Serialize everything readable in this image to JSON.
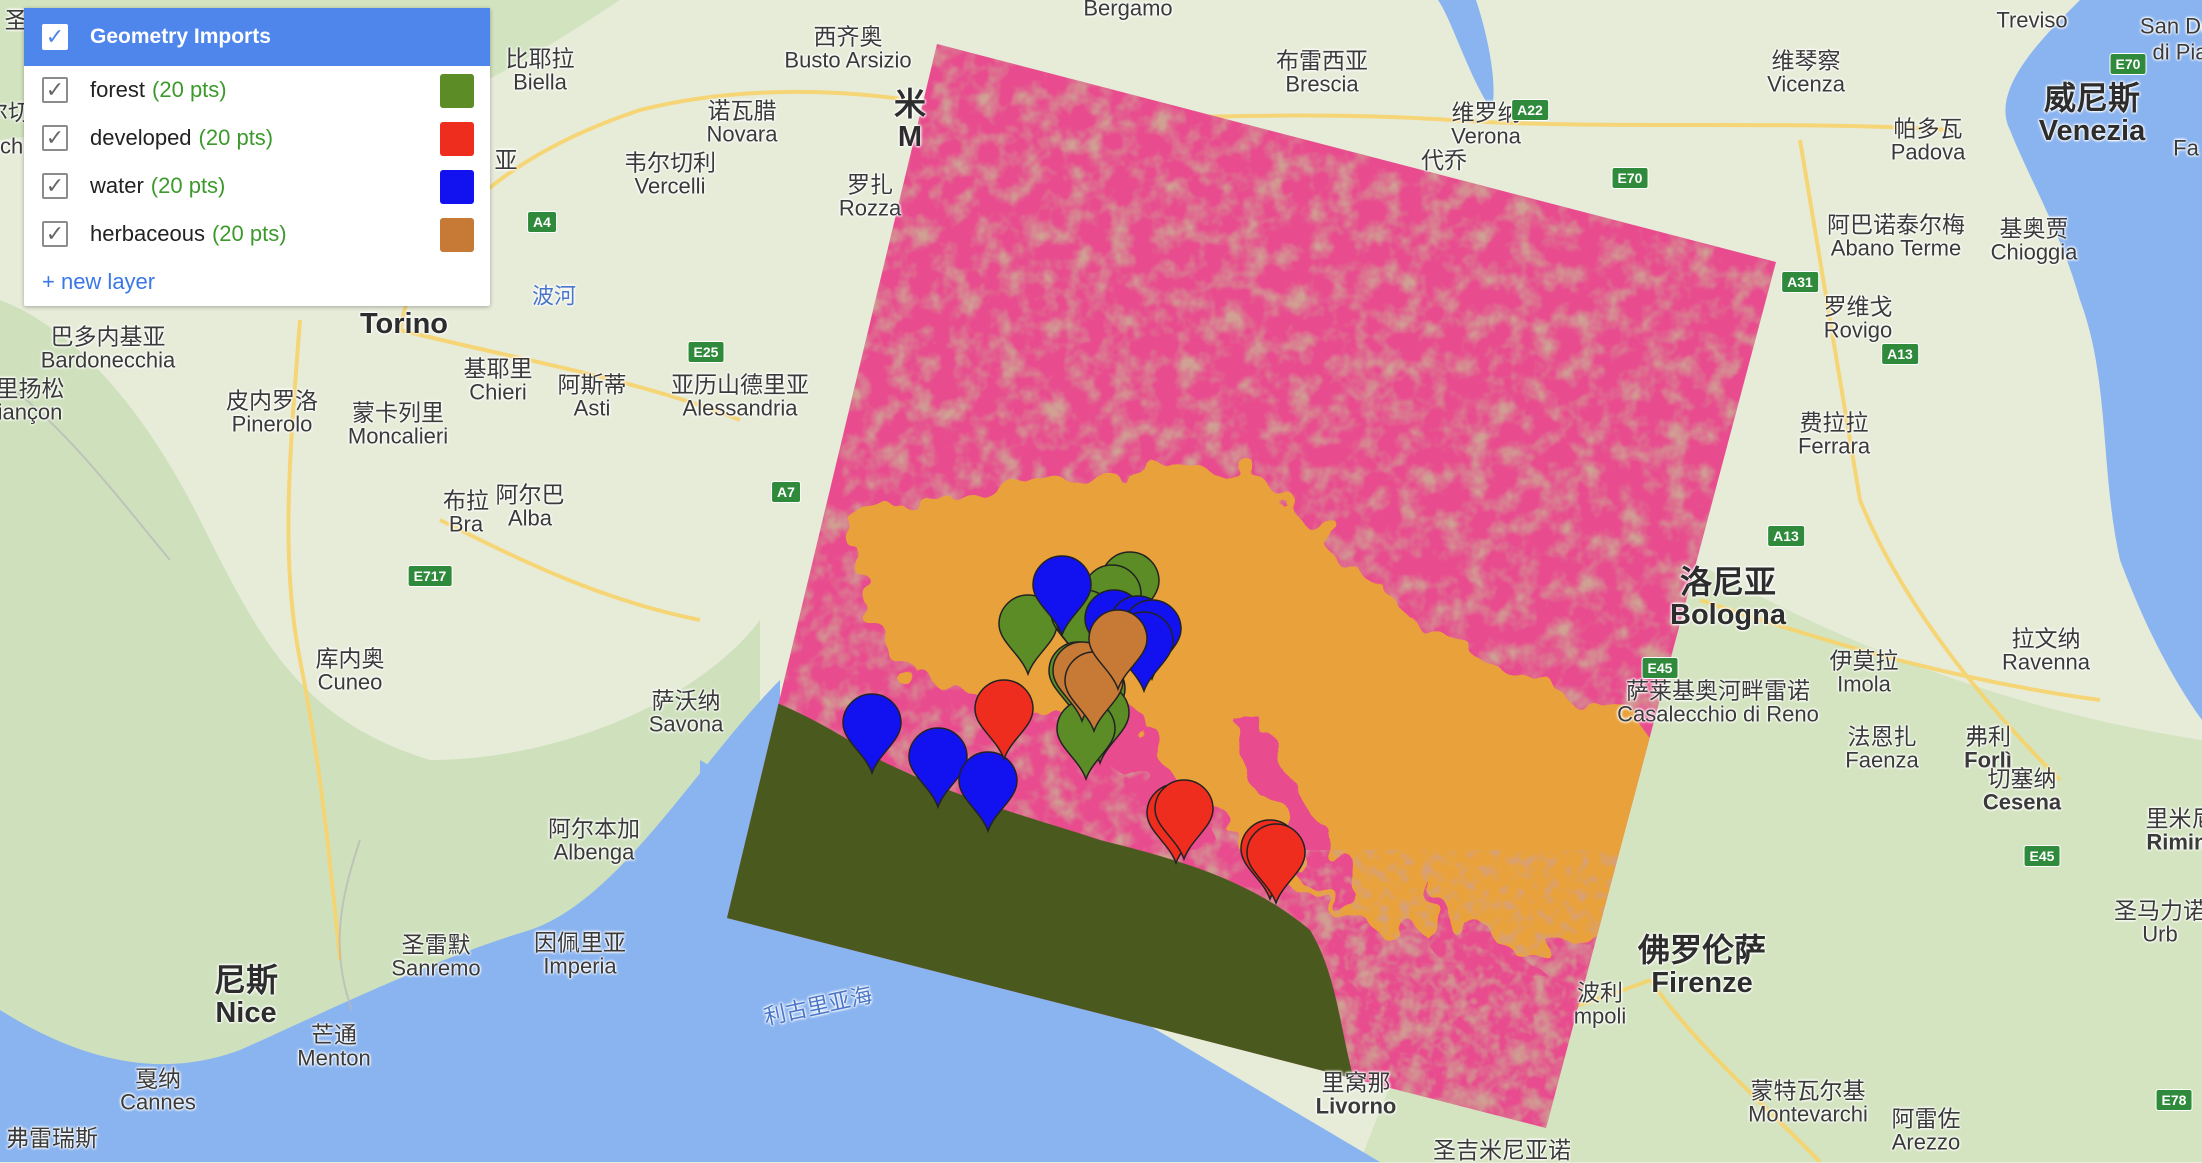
{
  "panel": {
    "title": "Geometry Imports",
    "layers": [
      {
        "name": "forest",
        "count": "(20 pts)",
        "color": "#5b8c26"
      },
      {
        "name": "developed",
        "count": "(20 pts)",
        "color": "#ef2d1f"
      },
      {
        "name": "water",
        "count": "(20 pts)",
        "color": "#1212f0"
      },
      {
        "name": "herbaceous",
        "count": "(20 pts)",
        "color": "#c77a35"
      }
    ],
    "new_layer": "+ new layer"
  },
  "classification_colors": {
    "mixed_class": "#e84c8e",
    "developed_texture": "#a05a4a",
    "cultivated": "#e9a23b",
    "sea_class": "#4a5a1e"
  },
  "places": [
    {
      "id": "treviso",
      "zh": "",
      "latin": "Treviso"
    },
    {
      "id": "busto",
      "zh": "西齐奥",
      "latin": "Busto Arsizio"
    },
    {
      "id": "bergamo",
      "zh": "",
      "latin": "Bergamo"
    },
    {
      "id": "biella",
      "zh": "比耶拉",
      "latin": "Biella"
    },
    {
      "id": "novara",
      "zh": "诺瓦腊",
      "latin": "Novara"
    },
    {
      "id": "milano",
      "zh": "米",
      "latin": "M"
    },
    {
      "id": "brescia",
      "zh": "布雷西亚",
      "latin": "Brescia"
    },
    {
      "id": "vicenza",
      "zh": "维琴察",
      "latin": "Vicenza"
    },
    {
      "id": "venezia",
      "zh": "威尼斯",
      "latin": "Venezia"
    },
    {
      "id": "verona",
      "zh": "维罗纳",
      "latin": "Verona"
    },
    {
      "id": "padova",
      "zh": "帕多瓦",
      "latin": "Padova"
    },
    {
      "id": "vercelli",
      "zh": "韦尔切利",
      "latin": "Vercelli"
    },
    {
      "id": "rozza",
      "zh": "罗扎",
      "latin": "Rozza"
    },
    {
      "id": "torino",
      "zh": "",
      "latin": "Torino"
    },
    {
      "id": "bardo",
      "zh": "巴多内基亚",
      "latin": "Bardonecchia"
    },
    {
      "id": "chieri",
      "zh": "基耶里",
      "latin": "Chieri"
    },
    {
      "id": "asti",
      "zh": "阿斯蒂",
      "latin": "Asti"
    },
    {
      "id": "alessandria",
      "zh": "亚历山德里亚",
      "latin": "Alessandria"
    },
    {
      "id": "pinerolo",
      "zh": "皮内罗洛",
      "latin": "Pinerolo"
    },
    {
      "id": "moncalieri",
      "zh": "蒙卡列里",
      "latin": "Moncalieri"
    },
    {
      "id": "briancon",
      "zh": "里扬松",
      "latin": "iançon"
    },
    {
      "id": "bra",
      "zh": "布拉",
      "latin": "Bra"
    },
    {
      "id": "alba",
      "zh": "阿尔巴",
      "latin": "Alba"
    },
    {
      "id": "cuneo",
      "zh": "库内奥",
      "latin": "Cuneo"
    },
    {
      "id": "savona",
      "zh": "萨沃纳",
      "latin": "Savona"
    },
    {
      "id": "albenga",
      "zh": "阿尔本加",
      "latin": "Albenga"
    },
    {
      "id": "sanremo",
      "zh": "圣雷默",
      "latin": "Sanremo"
    },
    {
      "id": "imperia",
      "zh": "因佩里亚",
      "latin": "Imperia"
    },
    {
      "id": "nice",
      "zh": "尼斯",
      "latin": "Nice"
    },
    {
      "id": "menton",
      "zh": "芒通",
      "latin": "Menton"
    },
    {
      "id": "cannes",
      "zh": "戛纳",
      "latin": "Cannes"
    },
    {
      "id": "frejus",
      "zh": "弗雷瑞斯",
      "latin": ""
    },
    {
      "id": "abano",
      "zh": "阿巴诺泰尔梅",
      "latin": "Abano Terme"
    },
    {
      "id": "chioggia",
      "zh": "基奥贾",
      "latin": "Chioggia"
    },
    {
      "id": "rovigo",
      "zh": "罗维戈",
      "latin": "Rovigo"
    },
    {
      "id": "ferrara",
      "zh": "费拉拉",
      "latin": "Ferrara"
    },
    {
      "id": "bologna",
      "zh": "洛尼亚",
      "latin": "Bologna"
    },
    {
      "id": "ravenna",
      "zh": "拉文纳",
      "latin": "Ravenna"
    },
    {
      "id": "casalecchio",
      "zh": "萨莱基奥河畔雷诺",
      "latin": "Casalecchio di Reno"
    },
    {
      "id": "imola",
      "zh": "伊莫拉",
      "latin": "Imola"
    },
    {
      "id": "faenza",
      "zh": "法恩扎",
      "latin": "Faenza"
    },
    {
      "id": "forli",
      "zh": "弗利",
      "latin": "Forlì"
    },
    {
      "id": "cesena",
      "zh": "切塞纳",
      "latin": "Cesena"
    },
    {
      "id": "rimini",
      "zh": "里米尼",
      "latin": "Rimini"
    },
    {
      "id": "sanmarino",
      "zh": "圣马力诺",
      "latin": "Urb"
    },
    {
      "id": "firenze",
      "zh": "佛罗伦萨",
      "latin": "Firenze"
    },
    {
      "id": "empoli",
      "zh": "波利",
      "latin": "mpoli"
    },
    {
      "id": "livorno",
      "zh": "里窝那",
      "latin": "Livorno"
    },
    {
      "id": "montevarchi",
      "zh": "蒙特瓦尔基",
      "latin": "Montevarchi"
    },
    {
      "id": "arezzo",
      "zh": "阿雷佐",
      "latin": "Arezzo"
    },
    {
      "id": "sanmin",
      "zh": "圣吉米尼亚诺",
      "latin": ""
    },
    {
      "id": "sandi",
      "zh": "",
      "latin": "San Dc"
    },
    {
      "id": "dipia",
      "zh": "",
      "latin": "di Pia"
    },
    {
      "id": "verch",
      "zh": "尔切",
      "latin": ""
    },
    {
      "id": "verchi",
      "zh": "",
      "latin": "rch"
    },
    {
      "id": "fa",
      "zh": "",
      "latin": "Fa"
    },
    {
      "id": "saint",
      "zh": "圣",
      "latin": ""
    },
    {
      "id": "ya",
      "zh": "亚",
      "latin": ""
    },
    {
      "id": "fudaiqi",
      "zh": "代乔",
      "latin": ""
    }
  ],
  "water_labels": [
    {
      "id": "po",
      "text": "波河"
    },
    {
      "id": "ligurian",
      "text": "利古里亚海"
    }
  ],
  "highways": [
    "E70",
    "A22",
    "E70",
    "A4",
    "E25",
    "A7",
    "E717",
    "A31",
    "A13",
    "A13",
    "E45",
    "E45",
    "E78"
  ]
}
